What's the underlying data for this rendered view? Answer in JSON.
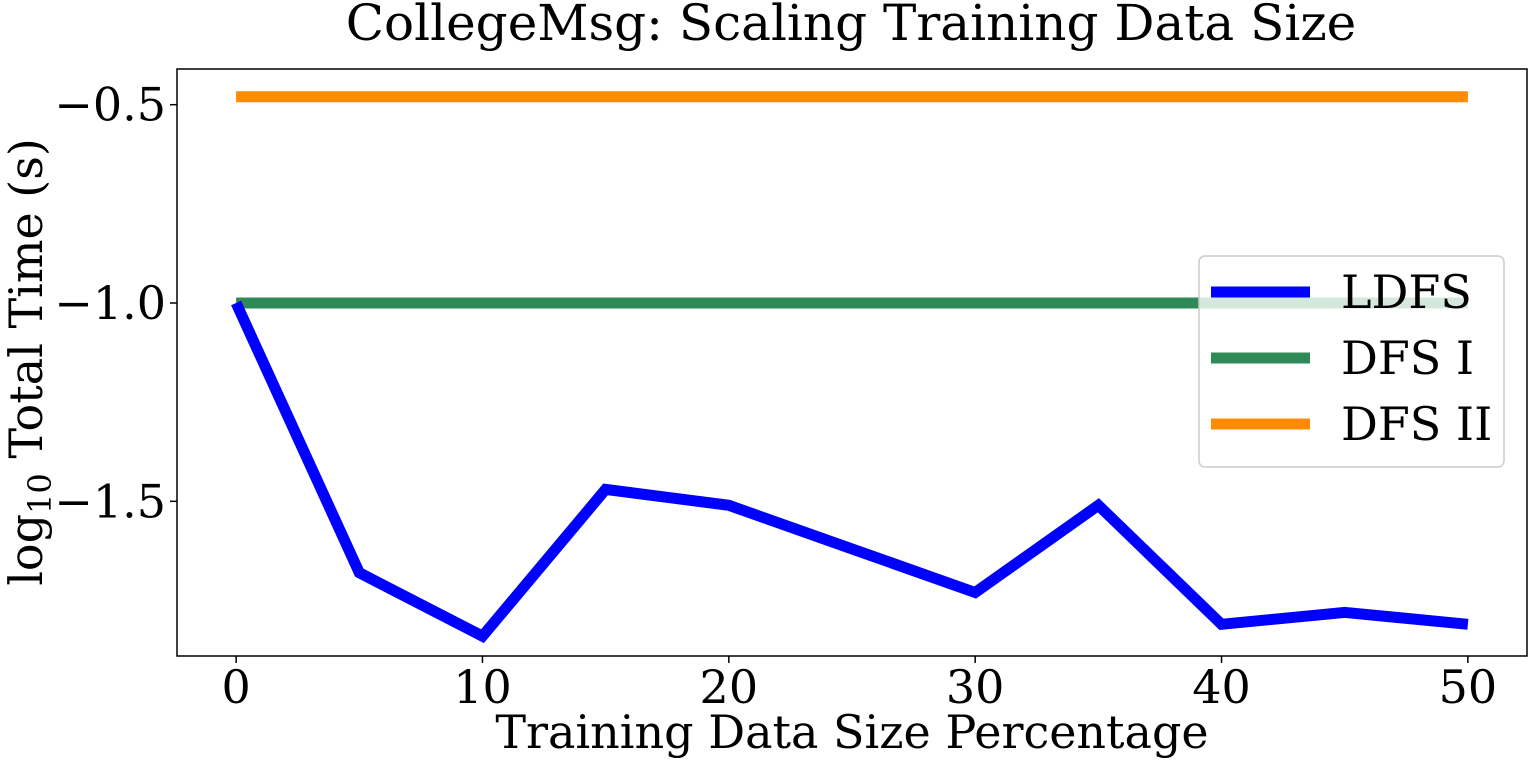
{
  "chart_data": {
    "type": "line",
    "title": "CollegeMsg: Scaling Training Data Size",
    "xlabel": "Training Data Size Percentage",
    "ylabel_prefix": "log",
    "ylabel_subscript": "10",
    "ylabel_suffix": " Total Time (s)",
    "xlim": [
      -2.4,
      52.4
    ],
    "ylim": [
      -1.89,
      -0.41
    ],
    "x_ticks": [
      0,
      10,
      20,
      30,
      40,
      50
    ],
    "x_tick_labels": [
      "0",
      "10",
      "20",
      "30",
      "40",
      "50"
    ],
    "y_ticks": [
      -0.5,
      -1.0,
      -1.5
    ],
    "y_tick_labels": [
      "−0.5",
      "−1.0",
      "−1.5"
    ],
    "grid": false,
    "legend_position": "center-right",
    "x": [
      0,
      5,
      10,
      15,
      20,
      25,
      30,
      35,
      40,
      45,
      50
    ],
    "series": [
      {
        "name": "LDFS",
        "color": "#0000ff",
        "values": [
          -1.0,
          -1.68,
          -1.84,
          -1.47,
          -1.51,
          -1.62,
          -1.73,
          -1.51,
          -1.81,
          -1.78,
          -1.81
        ]
      },
      {
        "name": "DFS I",
        "color": "#2e8b57",
        "values": [
          -1.0,
          -1.0,
          -1.0,
          -1.0,
          -1.0,
          -1.0,
          -1.0,
          -1.0,
          -1.0,
          -1.0,
          -1.0
        ]
      },
      {
        "name": "DFS II",
        "color": "#ff8c00",
        "values": [
          -0.48,
          -0.48,
          -0.48,
          -0.48,
          -0.48,
          -0.48,
          -0.48,
          -0.48,
          -0.48,
          -0.48,
          -0.48
        ]
      }
    ]
  }
}
